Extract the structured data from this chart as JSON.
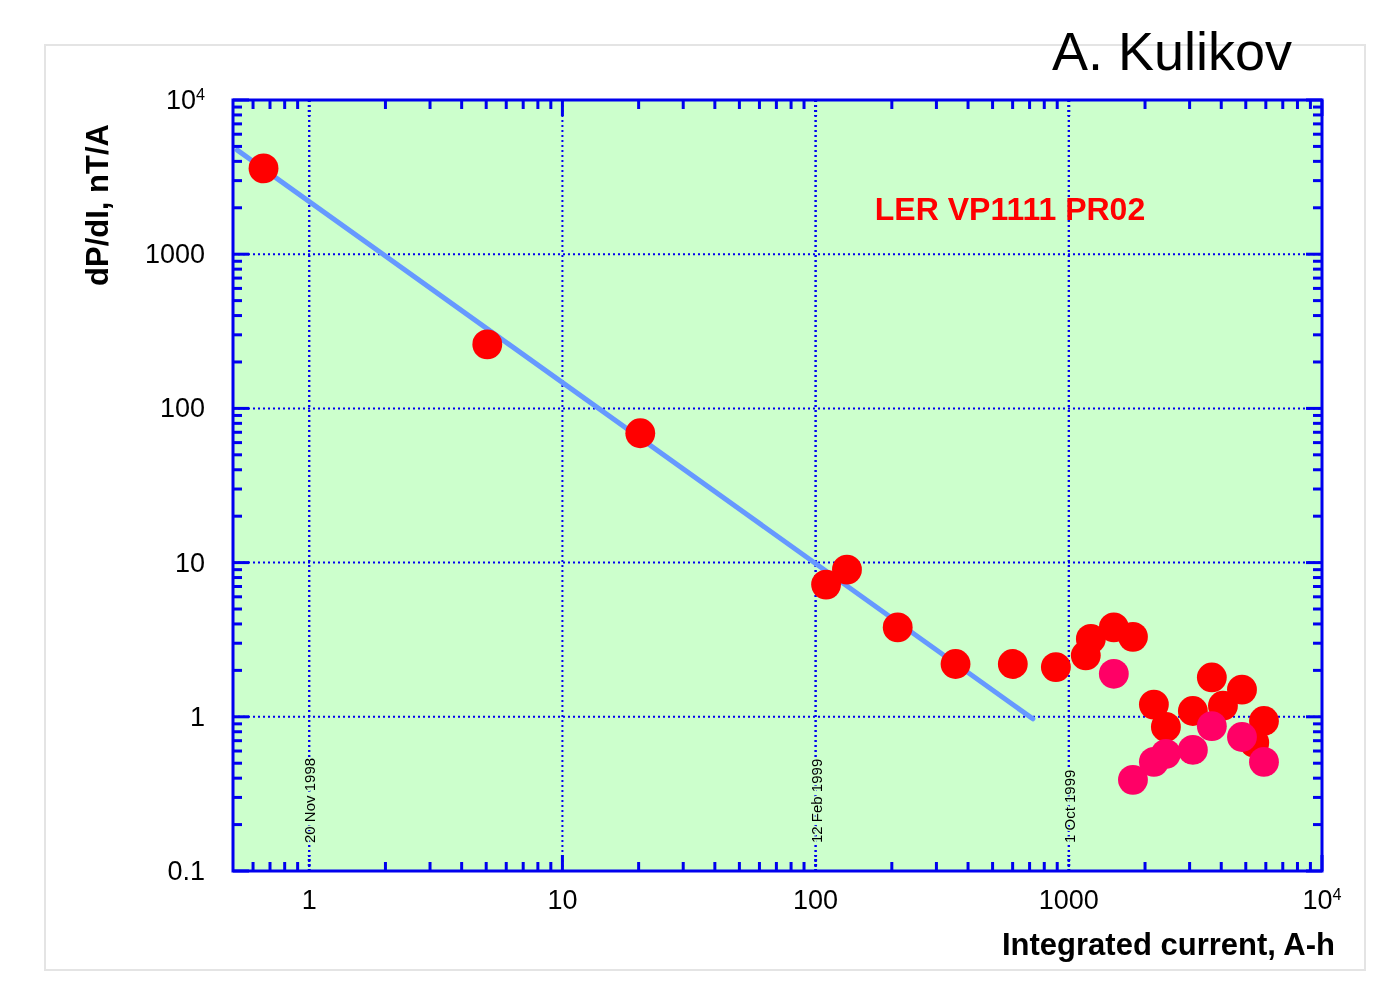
{
  "chart_data": {
    "type": "scatter",
    "title": "LER VP1111 PR02",
    "xlabel": "Integrated current,  A-h",
    "ylabel": "dP/dI,   nT/A",
    "annotations": [
      "A. Kulikov"
    ],
    "ref_lines": [
      {
        "axis": "x",
        "value": 1,
        "label": "20 Nov 1998",
        "color": "#0000ee",
        "line_style": "dotted"
      },
      {
        "axis": "x",
        "value": 100,
        "label": "12 Feb 1999",
        "color": "#0000ee",
        "line_style": "dotted"
      },
      {
        "axis": "x",
        "value": 1000,
        "label": "1 Oct 1999",
        "color": "#0000ee",
        "line_style": "dotted"
      }
    ],
    "log": "xy",
    "grid": true,
    "marker": "circle",
    "xlim": [
      0.5,
      10000
    ],
    "ylim": [
      0.1,
      10000
    ],
    "xticks": [
      {
        "value": 0.6,
        "label": null
      },
      {
        "value": 0.7,
        "label": null
      },
      {
        "value": 0.8,
        "label": null
      },
      {
        "value": 0.9,
        "label": null
      },
      1,
      {
        "value": 2,
        "label": null
      },
      {
        "value": 3,
        "label": null
      },
      {
        "value": 4,
        "label": null
      },
      {
        "value": 5,
        "label": null
      },
      {
        "value": 6,
        "label": null
      },
      {
        "value": 7,
        "label": null
      },
      {
        "value": 8,
        "label": null
      },
      {
        "value": 9,
        "label": null
      },
      10,
      {
        "value": 20,
        "label": null
      },
      {
        "value": 30,
        "label": null
      },
      {
        "value": 40,
        "label": null
      },
      {
        "value": 50,
        "label": null
      },
      {
        "value": 60,
        "label": null
      },
      {
        "value": 70,
        "label": null
      },
      {
        "value": 80,
        "label": null
      },
      {
        "value": 90,
        "label": null
      },
      100,
      {
        "value": 200,
        "label": null
      },
      {
        "value": 300,
        "label": null
      },
      {
        "value": 400,
        "label": null
      },
      {
        "value": 500,
        "label": null
      },
      {
        "value": 600,
        "label": null
      },
      {
        "value": 700,
        "label": null
      },
      {
        "value": 800,
        "label": null
      },
      {
        "value": 900,
        "label": null
      },
      1000,
      {
        "value": 2000,
        "label": null
      },
      {
        "value": 3000,
        "label": null
      },
      {
        "value": 4000,
        "label": null
      },
      {
        "value": 5000,
        "label": null
      },
      {
        "value": 6000,
        "label": null
      },
      {
        "value": 7000,
        "label": null
      },
      {
        "value": 8000,
        "label": null
      },
      {
        "value": 9000,
        "label": null
      },
      {
        "value": 10000,
        "label": "10$^{4}$"
      }
    ],
    "yticks": [
      0.1,
      {
        "value": 0.2,
        "label": null
      },
      {
        "value": 0.3,
        "label": null
      },
      {
        "value": 0.4,
        "label": null
      },
      {
        "value": 0.5,
        "label": null
      },
      {
        "value": 0.6,
        "label": null
      },
      {
        "value": 0.7,
        "label": null
      },
      {
        "value": 0.8,
        "label": null
      },
      {
        "value": 0.9,
        "label": null
      },
      1,
      {
        "value": 2,
        "label": null
      },
      {
        "value": 3,
        "label": null
      },
      {
        "value": 4,
        "label": null
      },
      {
        "value": 5,
        "label": null
      },
      {
        "value": 6,
        "label": null
      },
      {
        "value": 7,
        "label": null
      },
      {
        "value": 8,
        "label": null
      },
      {
        "value": 9,
        "label": null
      },
      10,
      {
        "value": 20,
        "label": null
      },
      {
        "value": 30,
        "label": null
      },
      {
        "value": 40,
        "label": null
      },
      {
        "value": 50,
        "label": null
      },
      {
        "value": 60,
        "label": null
      },
      {
        "value": 70,
        "label": null
      },
      {
        "value": 80,
        "label": null
      },
      {
        "value": 90,
        "label": null
      },
      100,
      {
        "value": 200,
        "label": null
      },
      {
        "value": 300,
        "label": null
      },
      {
        "value": 400,
        "label": null
      },
      {
        "value": 500,
        "label": null
      },
      {
        "value": 600,
        "label": null
      },
      {
        "value": 700,
        "label": null
      },
      {
        "value": 800,
        "label": null
      },
      {
        "value": 900,
        "label": null
      },
      1000,
      {
        "value": 2000,
        "label": null
      },
      {
        "value": 3000,
        "label": null
      },
      {
        "value": 4000,
        "label": null
      },
      {
        "value": 5000,
        "label": null
      },
      {
        "value": 6000,
        "label": null
      },
      {
        "value": 7000,
        "label": null
      },
      {
        "value": 8000,
        "label": null
      },
      {
        "value": 9000,
        "label": null
      },
      {
        "value": 10000,
        "label": "10$^{4}$"
      }
    ],
    "series": [
      {
        "type": "line",
        "color": "#6699ff",
        "marker": "none",
        "line_style": "solid",
        "x": [
          0.52,
          721
        ],
        "values": [
          4730,
          0.97
        ]
      },
      {
        "type": "scatter",
        "color": "#ff0000",
        "x": [
          0.66,
          5.05,
          20.3,
          110,
          133,
          211,
          357,
          601,
          889,
          1167,
          1222,
          1506,
          1792,
          2168,
          2418,
          3090,
          3672,
          4063,
          4830,
          5400,
          5900
        ],
        "values": [
          3600,
          260,
          69,
          7.2,
          9.0,
          3.8,
          2.2,
          2.2,
          2.1,
          2.5,
          3.2,
          3.8,
          3.3,
          1.2,
          0.86,
          1.09,
          1.8,
          1.18,
          1.5,
          0.68,
          0.94
        ]
      },
      {
        "type": "scatter",
        "color": "#ff0066",
        "x": [
          1506,
          1792,
          2168,
          2418,
          3090,
          3672,
          4830,
          5900
        ],
        "values": [
          1.9,
          0.39,
          0.51,
          0.575,
          0.61,
          0.87,
          0.74,
          0.51
        ]
      }
    ]
  }
}
